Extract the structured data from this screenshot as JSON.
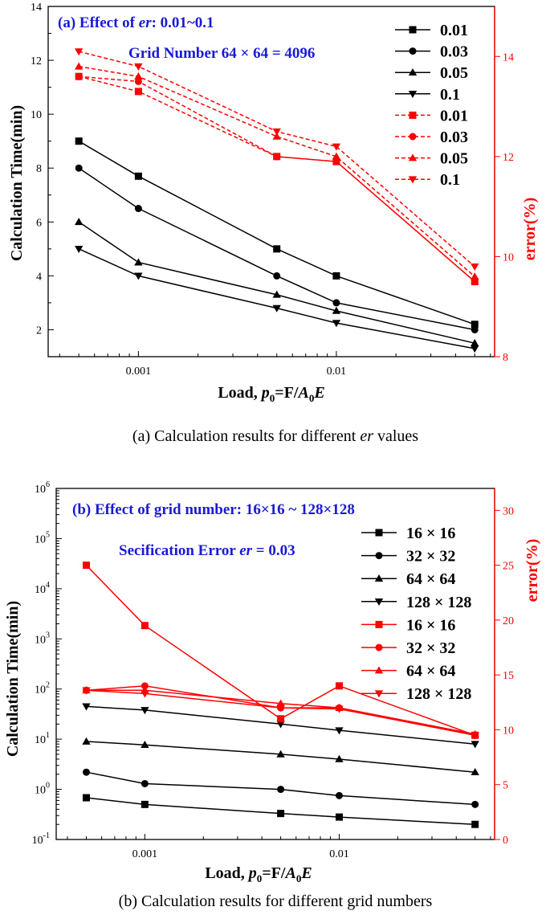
{
  "chart_data": [
    {
      "type": "line",
      "panel": "a",
      "annotation_prefix": "(a) Effect of ",
      "annotation_var": "er",
      "annotation_suffix": ": 0.01~0.1",
      "annotation2": "Grid Number 64 × 64 = 4096",
      "caption_prefix": "(a) Calculation results for different ",
      "caption_var": "er",
      "caption_suffix": " values",
      "xlabel_parts": [
        "Load, ",
        "p",
        "0",
        "=F/",
        "A",
        "0",
        "E"
      ],
      "ylabel": "Calculation Time(min)",
      "y2label": "error(%)",
      "x": [
        0.0005,
        0.001,
        0.005,
        0.01,
        0.05
      ],
      "xlim": [
        0.00035,
        0.063
      ],
      "ylim": [
        1,
        14
      ],
      "y2lim": [
        8,
        15
      ],
      "xticks": [
        {
          "v": 0.001,
          "label": "0.001"
        },
        {
          "v": 0.01,
          "label": "0.01"
        }
      ],
      "yticks": [
        2,
        4,
        6,
        8,
        10,
        12,
        14
      ],
      "y2ticks": [
        8,
        10,
        12,
        14
      ],
      "series": [
        {
          "name": "0.01",
          "axis": "left",
          "marker": "square",
          "color": "#000000",
          "dashed": false,
          "values": [
            9.0,
            7.7,
            5.0,
            4.0,
            2.2
          ]
        },
        {
          "name": "0.03",
          "axis": "left",
          "marker": "circle",
          "color": "#000000",
          "dashed": false,
          "values": [
            8.0,
            6.5,
            4.0,
            3.0,
            2.0
          ]
        },
        {
          "name": "0.05",
          "axis": "left",
          "marker": "triangle-up",
          "color": "#000000",
          "dashed": false,
          "values": [
            6.0,
            4.5,
            3.3,
            2.7,
            1.5
          ]
        },
        {
          "name": "0.1",
          "axis": "left",
          "marker": "triangle-down",
          "color": "#000000",
          "dashed": false,
          "values": [
            5.0,
            4.0,
            2.8,
            2.25,
            1.3
          ]
        },
        {
          "name": "0.01",
          "axis": "right",
          "marker": "square",
          "color": "#ff0000",
          "dashed": true,
          "values": [
            13.6,
            13.3,
            12.0,
            11.9,
            9.5
          ]
        },
        {
          "name": "0.03",
          "axis": "right",
          "marker": "circle",
          "color": "#ff0000",
          "dashed": true,
          "values": [
            13.6,
            13.5,
            12.0,
            11.9,
            9.5
          ]
        },
        {
          "name": "0.05",
          "axis": "right",
          "marker": "triangle-up",
          "color": "#ff0000",
          "dashed": true,
          "values": [
            13.8,
            13.6,
            12.4,
            12.0,
            9.6
          ]
        },
        {
          "name": "0.1",
          "axis": "right",
          "marker": "triangle-down",
          "color": "#ff0000",
          "dashed": true,
          "values": [
            14.1,
            13.8,
            12.5,
            12.2,
            9.8
          ]
        }
      ]
    },
    {
      "type": "line",
      "panel": "b",
      "annotation_prefix": "(b) Effect of grid number: 16×16 ~ 128×128",
      "annotation2_prefix": "Secification Error ",
      "annotation2_var": "er",
      "annotation2_suffix": " = 0.03",
      "caption": "(b) Calculation results for different grid numbers",
      "xlabel_parts": [
        "Load, ",
        "p",
        "0",
        "=F/",
        "A",
        "0",
        "E"
      ],
      "ylabel": "Calculation Time(min)",
      "y2label": "error(%)",
      "x": [
        0.0005,
        0.001,
        0.005,
        0.01,
        0.05
      ],
      "xlim": [
        0.00035,
        0.063
      ],
      "ylim_log10": [
        -1,
        6
      ],
      "y2lim": [
        0,
        32
      ],
      "xticks": [
        {
          "v": 0.001,
          "label": "0.001"
        },
        {
          "v": 0.01,
          "label": "0.01"
        }
      ],
      "yticks_exp": [
        -1,
        0,
        1,
        2,
        3,
        4,
        5,
        6
      ],
      "y2ticks": [
        0,
        5,
        10,
        15,
        20,
        25,
        30
      ],
      "series": [
        {
          "name": "16 × 16",
          "axis": "left",
          "marker": "square",
          "color": "#000000",
          "values": [
            0.68,
            0.5,
            0.33,
            0.28,
            0.2
          ]
        },
        {
          "name": "32 × 32",
          "axis": "left",
          "marker": "circle",
          "color": "#000000",
          "values": [
            2.2,
            1.3,
            1.0,
            0.75,
            0.5
          ]
        },
        {
          "name": "64 × 64",
          "axis": "left",
          "marker": "triangle-up",
          "color": "#000000",
          "values": [
            9.0,
            7.7,
            5.0,
            4.0,
            2.2
          ]
        },
        {
          "name": "128 × 128",
          "axis": "left",
          "marker": "triangle-down",
          "color": "#000000",
          "values": [
            45,
            38,
            20,
            15,
            8
          ]
        },
        {
          "name": "16 × 16",
          "axis": "right",
          "marker": "square",
          "color": "#ff0000",
          "values": [
            25.0,
            19.5,
            11.0,
            14.0,
            9.5
          ]
        },
        {
          "name": "32 × 32",
          "axis": "right",
          "marker": "circle",
          "color": "#ff0000",
          "values": [
            13.6,
            14.0,
            12.0,
            12.0,
            9.5
          ]
        },
        {
          "name": "64 × 64",
          "axis": "right",
          "marker": "triangle-up",
          "color": "#ff0000",
          "values": [
            13.6,
            13.6,
            12.4,
            12.0,
            9.6
          ]
        },
        {
          "name": "128 × 128",
          "axis": "right",
          "marker": "triangle-down",
          "color": "#ff0000",
          "values": [
            13.6,
            13.3,
            12.0,
            11.9,
            9.5
          ]
        }
      ]
    }
  ]
}
